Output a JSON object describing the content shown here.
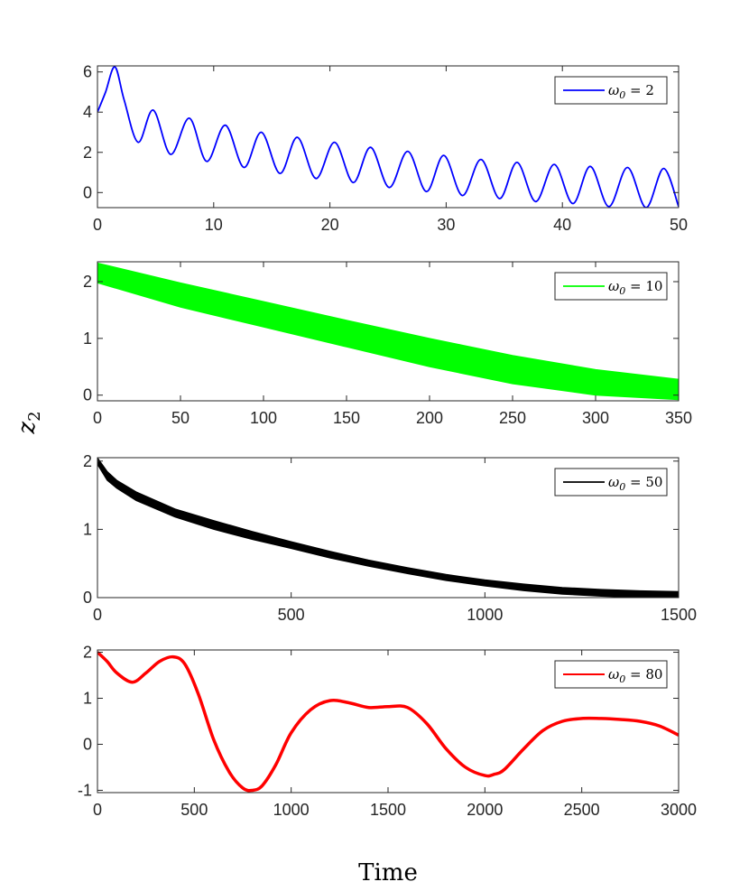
{
  "figure": {
    "ylabel": "z",
    "ylabel_sub": "2",
    "xlabel": "Time"
  },
  "chart_data": [
    {
      "type": "line",
      "xlim": [
        0,
        50
      ],
      "ylim": [
        -0.75,
        6.3
      ],
      "xticks": [
        0,
        10,
        20,
        30,
        40,
        50
      ],
      "yticks": [
        0,
        2,
        4,
        6
      ],
      "legend": {
        "symbol": "ω",
        "sub": "0",
        "rest": " = 2",
        "position": "top-right"
      },
      "series": [
        {
          "name": "ω0 = 2",
          "color": "#0000ff",
          "style": "thin",
          "x": [
            0,
            0.7,
            1.5,
            2.3,
            3.5,
            4.8,
            6.3,
            7.9,
            9.4,
            11.0,
            12.6,
            14.1,
            15.7,
            17.2,
            18.8,
            20.4,
            22.0,
            23.5,
            25.1,
            26.7,
            28.3,
            29.8,
            31.4,
            33.0,
            34.6,
            36.1,
            37.7,
            39.3,
            40.9,
            42.4,
            44.0,
            45.6,
            47.2,
            48.7,
            50.0
          ],
          "y": [
            4.0,
            5.0,
            6.25,
            4.6,
            2.5,
            4.1,
            1.9,
            3.7,
            1.55,
            3.35,
            1.25,
            3.0,
            0.95,
            2.75,
            0.7,
            2.5,
            0.5,
            2.25,
            0.25,
            2.05,
            0.05,
            1.85,
            -0.15,
            1.65,
            -0.3,
            1.5,
            -0.45,
            1.4,
            -0.55,
            1.3,
            -0.7,
            1.25,
            -0.75,
            1.2,
            -0.7
          ]
        }
      ]
    },
    {
      "type": "area",
      "xlim": [
        0,
        350
      ],
      "ylim": [
        -0.1,
        2.35
      ],
      "xticks": [
        0,
        50,
        100,
        150,
        200,
        250,
        300,
        350
      ],
      "yticks": [
        0,
        1,
        2
      ],
      "legend": {
        "symbol": "ω",
        "sub": "0",
        "rest": " = 10",
        "position": "top-right"
      },
      "series": [
        {
          "name": "ω0 = 10 envelope",
          "color": "#00ff00",
          "style": "band",
          "x": [
            0,
            50,
            100,
            150,
            200,
            250,
            300,
            350
          ],
          "upper": [
            2.33,
            1.98,
            1.65,
            1.32,
            1.0,
            0.7,
            0.45,
            0.28
          ],
          "lower": [
            1.98,
            1.55,
            1.2,
            0.85,
            0.5,
            0.2,
            0.0,
            -0.08
          ]
        }
      ]
    },
    {
      "type": "area",
      "xlim": [
        0,
        1500
      ],
      "ylim": [
        0,
        2.05
      ],
      "xticks": [
        0,
        500,
        1000,
        1500
      ],
      "yticks": [
        0,
        1,
        2
      ],
      "legend": {
        "symbol": "ω",
        "sub": "0",
        "rest": " = 50",
        "position": "top-right"
      },
      "series": [
        {
          "name": "ω0 = 50 envelope",
          "color": "#000000",
          "style": "band",
          "x": [
            0,
            25,
            50,
            100,
            200,
            300,
            400,
            500,
            600,
            700,
            800,
            900,
            1000,
            1100,
            1200,
            1300,
            1400,
            1500
          ],
          "upper": [
            2.05,
            1.85,
            1.72,
            1.55,
            1.3,
            1.13,
            0.97,
            0.82,
            0.68,
            0.55,
            0.44,
            0.34,
            0.26,
            0.2,
            0.15,
            0.12,
            0.1,
            0.09
          ],
          "lower": [
            1.95,
            1.72,
            1.6,
            1.42,
            1.18,
            1.0,
            0.85,
            0.72,
            0.58,
            0.46,
            0.35,
            0.25,
            0.17,
            0.1,
            0.05,
            0.02,
            0.0,
            0.0
          ]
        }
      ]
    },
    {
      "type": "line",
      "xlim": [
        0,
        3000
      ],
      "ylim": [
        -1.05,
        2.05
      ],
      "xticks": [
        0,
        500,
        1000,
        1500,
        2000,
        2500,
        3000
      ],
      "yticks": [
        -1,
        0,
        1,
        2
      ],
      "legend": {
        "symbol": "ω",
        "sub": "0",
        "rest": " = 80",
        "position": "top-right"
      },
      "series": [
        {
          "name": "ω0 = 80",
          "color": "#ff0000",
          "style": "thick",
          "x": [
            0,
            50,
            100,
            180,
            250,
            320,
            390,
            450,
            520,
            600,
            680,
            750,
            800,
            850,
            920,
            1000,
            1100,
            1200,
            1300,
            1400,
            1500,
            1600,
            1700,
            1800,
            1900,
            2000,
            2050,
            2100,
            2200,
            2300,
            2400,
            2500,
            2600,
            2700,
            2800,
            2900,
            3000
          ],
          "y": [
            2.0,
            1.8,
            1.55,
            1.35,
            1.55,
            1.8,
            1.9,
            1.75,
            1.1,
            0.1,
            -0.6,
            -0.95,
            -1.0,
            -0.9,
            -0.45,
            0.25,
            0.75,
            0.95,
            0.9,
            0.8,
            0.82,
            0.8,
            0.45,
            -0.1,
            -0.5,
            -0.68,
            -0.65,
            -0.55,
            -0.1,
            0.3,
            0.5,
            0.56,
            0.56,
            0.54,
            0.5,
            0.4,
            0.2
          ]
        }
      ]
    }
  ]
}
